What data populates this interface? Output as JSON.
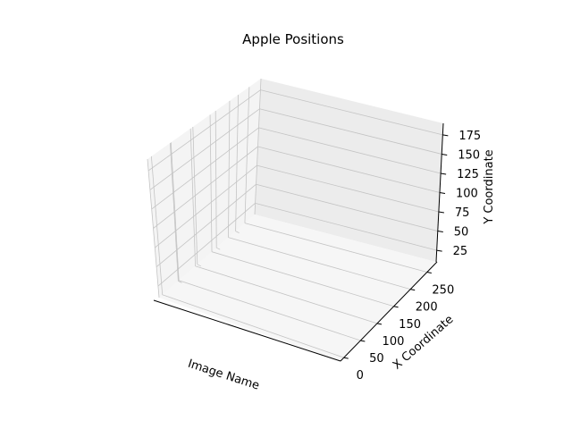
{
  "chart_data": {
    "type": "scatter",
    "projection": "3d",
    "title": "Apple Positions",
    "xlabel": "Image Name",
    "ylabel": "X Coordinate",
    "zlabel": "Y Coordinate",
    "x_ticks": [],
    "y_ticks": [
      "0",
      "50",
      "100",
      "150",
      "200",
      "250"
    ],
    "z_ticks": [
      "25",
      "50",
      "75",
      "100",
      "125",
      "150",
      "175"
    ],
    "ylim": [
      -10,
      280
    ],
    "zlim": [
      10,
      190
    ],
    "grid": true,
    "points": []
  }
}
